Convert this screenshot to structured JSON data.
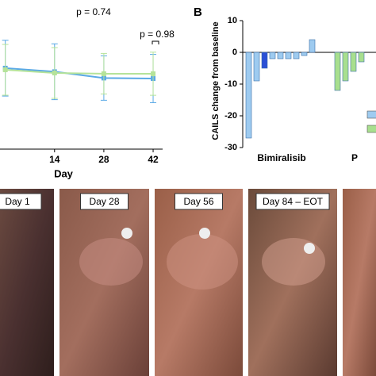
{
  "chart_data": [
    {
      "type": "line",
      "title": "p = 0.74",
      "annotations": [
        "p = 0.98"
      ],
      "xlabel": "Day",
      "xlim": [
        -1.5,
        46.5
      ],
      "xticks": [
        14,
        28,
        42
      ],
      "ylim": [
        0,
        100
      ],
      "series": [
        {
          "name": "Bimiralisib",
          "color": "#5aa9e6",
          "x": [
            0,
            14,
            28,
            42
          ],
          "values": [
            58.8,
            56,
            51,
            50.6
          ],
          "errors": [
            22,
            22,
            17.5,
            19
          ]
        },
        {
          "name": "Placebo",
          "color": "#b5e39a",
          "x": [
            0,
            14,
            28,
            42
          ],
          "values": [
            57.5,
            55,
            54.4,
            54.4
          ],
          "errors": [
            20,
            20,
            16,
            17
          ]
        }
      ]
    },
    {
      "type": "bar",
      "panel": "B",
      "ylabel": "CAILS change from baseline",
      "ylim": [
        -30,
        12
      ],
      "yticks": [
        10,
        0,
        -10,
        -20,
        -30
      ],
      "groups": [
        {
          "label": "Bimiralisib",
          "color": "#9ecbf0",
          "values": [
            -27,
            -9,
            -5,
            -2,
            -2,
            -2,
            -2,
            -1,
            4
          ],
          "highlight": {
            "index": 2,
            "color": "#2a4fd6"
          }
        },
        {
          "label": "P",
          "color": "#a8df8e",
          "values": [
            -12,
            -9,
            -6,
            -3
          ]
        }
      ]
    }
  ],
  "photos": [
    "Day 1",
    "Day 28",
    "Day 56",
    "Day 84 – EOT"
  ]
}
